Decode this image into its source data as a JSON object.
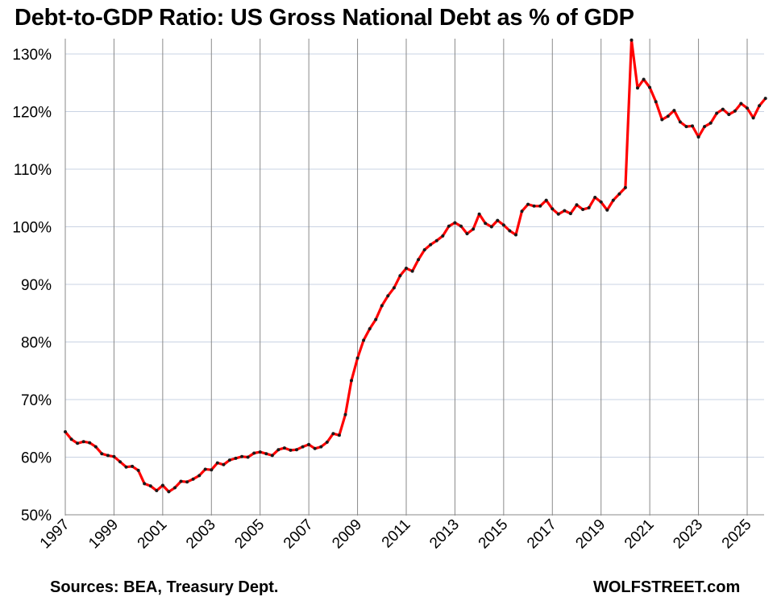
{
  "chart_data": {
    "type": "line",
    "title": "Debt-to-GDP Ratio: US Gross National Debt as % of GDP",
    "xlabel": "",
    "ylabel": "",
    "ylim": [
      50,
      132
    ],
    "y_ticks": [
      "50%",
      "60%",
      "70%",
      "80%",
      "90%",
      "100%",
      "110%",
      "120%",
      "130%"
    ],
    "y_tick_values": [
      50,
      60,
      70,
      80,
      90,
      100,
      110,
      120,
      130
    ],
    "x_ticks": [
      "1997",
      "1999",
      "2001",
      "2003",
      "2005",
      "2007",
      "2009",
      "2011",
      "2013",
      "2015",
      "2017",
      "2019",
      "2021",
      "2023",
      "2025"
    ],
    "x_tick_values": [
      1997,
      1999,
      2001,
      2003,
      2005,
      2007,
      2009,
      2011,
      2013,
      2015,
      2017,
      2019,
      2021,
      2023,
      2025
    ],
    "xlim": [
      1997,
      2025.8
    ],
    "grid": "vertical lines at each labeled year, horizontal lines at each 10%",
    "line_color": "#ff0000",
    "marker_color": "#1a1a1a",
    "series": [
      {
        "x": [
          1997.0,
          1997.25,
          1997.5,
          1997.75,
          1998.0,
          1998.25,
          1998.5,
          1998.75,
          1999.0,
          1999.25,
          1999.5,
          1999.75,
          2000.0,
          2000.25,
          2000.5,
          2000.75,
          2001.0,
          2001.25,
          2001.5,
          2001.75,
          2002.0,
          2002.25,
          2002.5,
          2002.75,
          2003.0,
          2003.25,
          2003.5,
          2003.75,
          2004.0,
          2004.25,
          2004.5,
          2004.75,
          2005.0,
          2005.25,
          2005.5,
          2005.75,
          2006.0,
          2006.25,
          2006.5,
          2006.75,
          2007.0,
          2007.25,
          2007.5,
          2007.75,
          2008.0,
          2008.25,
          2008.5,
          2008.75,
          2009.0,
          2009.25,
          2009.5,
          2009.75,
          2010.0,
          2010.25,
          2010.5,
          2010.75,
          2011.0,
          2011.25,
          2011.5,
          2011.75,
          2012.0,
          2012.25,
          2012.5,
          2012.75,
          2013.0,
          2013.25,
          2013.5,
          2013.75,
          2014.0,
          2014.25,
          2014.5,
          2014.75,
          2015.0,
          2015.25,
          2015.5,
          2015.75,
          2016.0,
          2016.25,
          2016.5,
          2016.75,
          2017.0,
          2017.25,
          2017.5,
          2017.75,
          2018.0,
          2018.25,
          2018.5,
          2018.75,
          2019.0,
          2019.25,
          2019.5,
          2019.75,
          2020.0,
          2020.25,
          2020.5,
          2020.75,
          2021.0,
          2021.25,
          2021.5,
          2021.75,
          2022.0,
          2022.25,
          2022.5,
          2022.75,
          2023.0,
          2023.25,
          2023.5,
          2023.75,
          2024.0,
          2024.25,
          2024.5,
          2024.75,
          2025.0,
          2025.25,
          2025.5,
          2025.75
        ],
        "values": [
          64.4,
          63.1,
          62.4,
          62.7,
          62.5,
          61.8,
          60.6,
          60.3,
          60.1,
          59.2,
          58.3,
          58.4,
          57.7,
          55.4,
          55.0,
          54.2,
          55.1,
          54.0,
          54.7,
          55.8,
          55.7,
          56.2,
          56.8,
          57.9,
          57.8,
          59.0,
          58.7,
          59.5,
          59.8,
          60.1,
          60.0,
          60.7,
          60.9,
          60.6,
          60.3,
          61.3,
          61.6,
          61.2,
          61.3,
          61.8,
          62.2,
          61.5,
          61.8,
          62.6,
          64.1,
          63.8,
          67.4,
          73.3,
          77.2,
          80.3,
          82.3,
          83.9,
          86.3,
          88.0,
          89.4,
          91.5,
          92.8,
          92.3,
          94.3,
          96.0,
          96.9,
          97.6,
          98.4,
          100.1,
          100.7,
          100.1,
          98.8,
          99.6,
          102.2,
          100.6,
          100.0,
          101.1,
          100.3,
          99.3,
          98.6,
          102.7,
          103.9,
          103.6,
          103.6,
          104.6,
          103.1,
          102.2,
          102.8,
          102.3,
          103.8,
          103.0,
          103.3,
          105.1,
          104.3,
          102.9,
          104.6,
          105.7,
          106.8,
          132.4,
          124.1,
          125.6,
          124.2,
          121.7,
          118.6,
          119.2,
          120.2,
          118.2,
          117.4,
          117.5,
          115.6,
          117.4,
          118.0,
          119.7,
          120.4,
          119.5,
          120.1,
          121.4,
          120.6,
          118.9,
          121.0,
          122.3
        ]
      }
    ]
  },
  "footer": {
    "source": "Sources: BEA, Treasury Dept.",
    "credit": "WOLFSTREET.com"
  }
}
